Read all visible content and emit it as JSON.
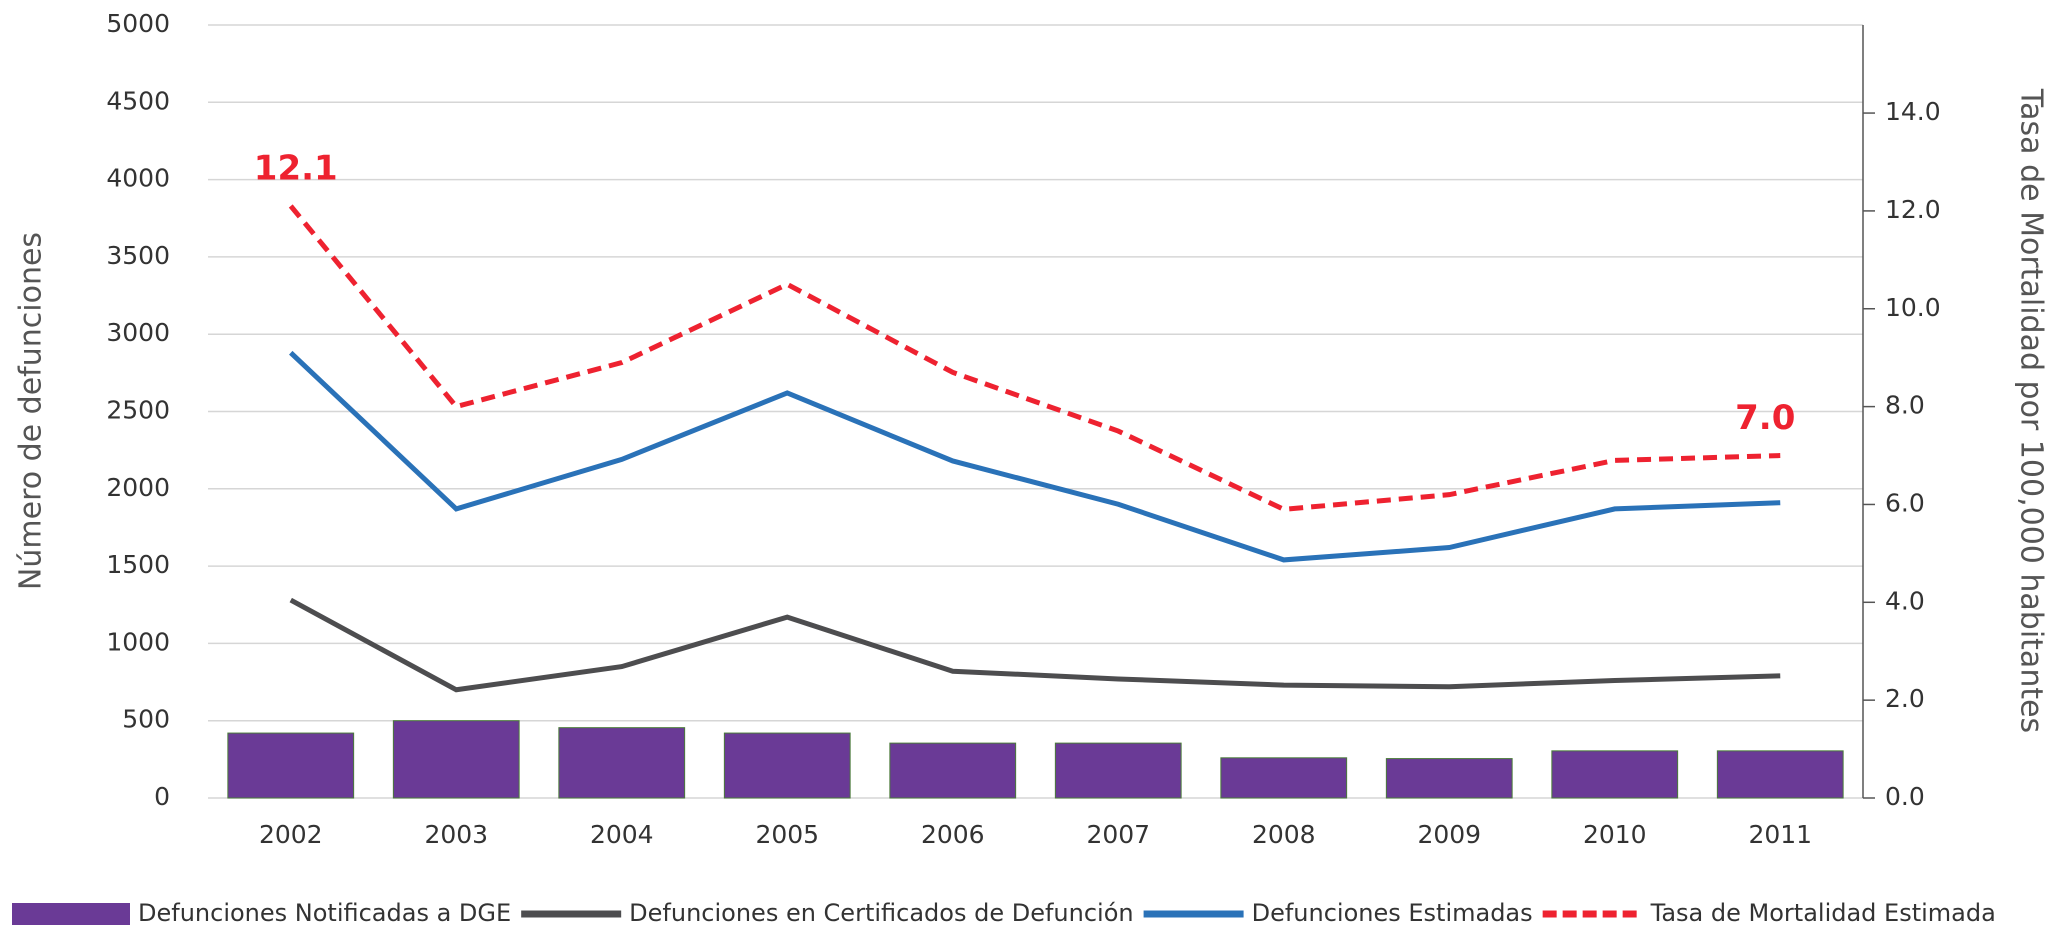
{
  "chart_data": {
    "type": "bar",
    "categories": [
      "2002",
      "2003",
      "2004",
      "2005",
      "2006",
      "2007",
      "2008",
      "2009",
      "2010",
      "2011"
    ],
    "series": [
      {
        "name": "Defunciones Notificadas a DGE",
        "type": "bar",
        "color": "#6a3a96",
        "values": [
          420,
          500,
          455,
          420,
          355,
          355,
          260,
          255,
          305,
          305
        ]
      },
      {
        "name": "Defunciones en Certificados de Defunción",
        "type": "line",
        "color": "#4d4d4f",
        "values": [
          1280,
          700,
          850,
          1170,
          820,
          770,
          730,
          720,
          760,
          790
        ]
      },
      {
        "name": "Defunciones Estimadas",
        "type": "line",
        "color": "#2a72b8",
        "values": [
          2880,
          1870,
          2190,
          2620,
          2180,
          1900,
          1540,
          1620,
          1870,
          1910
        ]
      },
      {
        "name": "Tasa de Mortalidad Estimada",
        "type": "line",
        "axis": "y2",
        "linestyle": "dashed",
        "color": "#ee2230",
        "values": [
          12.1,
          8.0,
          8.9,
          10.5,
          8.7,
          7.5,
          5.9,
          6.2,
          6.9,
          7.0
        ],
        "value_labels": [
          "12.1",
          null,
          null,
          null,
          null,
          null,
          null,
          null,
          null,
          "7.0"
        ]
      }
    ],
    "ylabel": "Número de defunciones",
    "y2label": "Tasa de Mortalidad por 100,000 habitantes",
    "ylim": [
      0,
      5000
    ],
    "yticks": [
      0,
      500,
      1000,
      1500,
      2000,
      2500,
      3000,
      3500,
      4000,
      4500,
      5000
    ],
    "y2lim": [
      0,
      15.8
    ],
    "y2ticks": [
      {
        "value": 0,
        "label": "0.0"
      },
      {
        "value": 2,
        "label": "2.0"
      },
      {
        "value": 4,
        "label": "4.0"
      },
      {
        "value": 6,
        "label": "6.0"
      },
      {
        "value": 8,
        "label": "8.0"
      },
      {
        "value": 10,
        "label": "10.0"
      },
      {
        "value": 12,
        "label": "12.0"
      },
      {
        "value": 14,
        "label": "14.0"
      }
    ],
    "grid": true,
    "legend": "bottom"
  }
}
